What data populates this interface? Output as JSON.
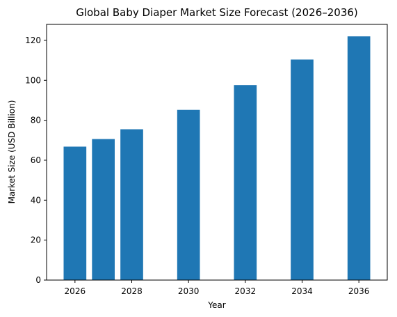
{
  "chart_data": {
    "type": "bar",
    "title": "Global Baby Diaper Market Size Forecast (2026–2036)",
    "xlabel": "Year",
    "ylabel": "Market Size (USD Billion)",
    "x": [
      2026,
      2027,
      2028,
      2030,
      2032,
      2034,
      2036
    ],
    "values": [
      66.8,
      70.6,
      75.5,
      85.2,
      97.6,
      110.4,
      122.0
    ],
    "xticks": [
      2026,
      2028,
      2030,
      2032,
      2034,
      2036
    ],
    "yticks": [
      0,
      20,
      40,
      60,
      80,
      100,
      120
    ],
    "xlim": [
      2025.0,
      2037.0
    ],
    "ylim": [
      0,
      128
    ],
    "bar_width": 0.8,
    "bar_color": "#1f77b4",
    "grid": false,
    "legend": "none"
  }
}
